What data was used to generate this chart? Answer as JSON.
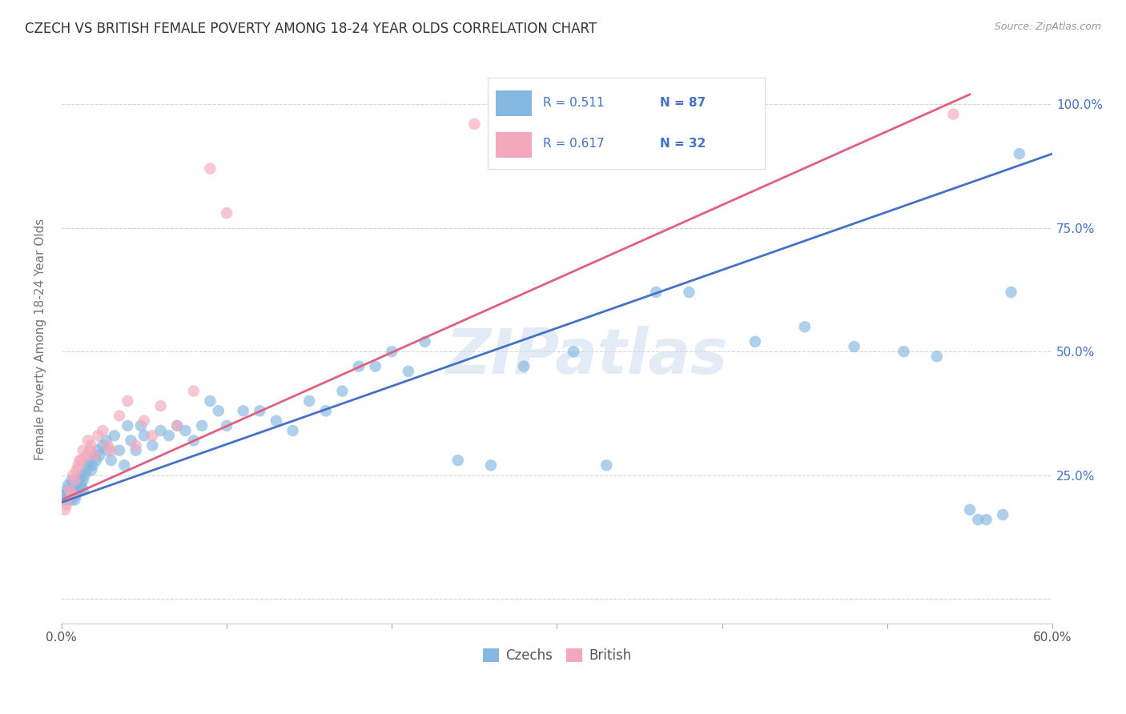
{
  "title": "CZECH VS BRITISH FEMALE POVERTY AMONG 18-24 YEAR OLDS CORRELATION CHART",
  "source": "Source: ZipAtlas.com",
  "ylabel": "Female Poverty Among 18-24 Year Olds",
  "xlim": [
    0.0,
    0.6
  ],
  "ylim": [
    -0.05,
    1.1
  ],
  "xtick_pos": [
    0.0,
    0.1,
    0.2,
    0.3,
    0.4,
    0.5,
    0.6
  ],
  "xtick_labels_bottom": [
    "0.0%",
    "",
    "",
    "",
    "",
    "",
    "60.0%"
  ],
  "ytick_pos": [
    0.0,
    0.25,
    0.5,
    0.75,
    1.0
  ],
  "ytick_labels_right": [
    "",
    "25.0%",
    "50.0%",
    "75.0%",
    "100.0%"
  ],
  "watermark": "ZIPatlas",
  "legend_czechs_label": "Czechs",
  "legend_british_label": "British",
  "legend_r_czechs": "R = 0.511",
  "legend_n_czechs": "N = 87",
  "legend_r_british": "R = 0.617",
  "legend_n_british": "N = 32",
  "czechs_color": "#85b8e0",
  "british_color": "#f4a8bc",
  "czechs_line_color": "#4472c4",
  "british_line_color": "#e06080",
  "text_color": "#4472c4",
  "background_color": "#ffffff",
  "czechs_x": [
    0.001,
    0.002,
    0.003,
    0.003,
    0.004,
    0.004,
    0.005,
    0.005,
    0.006,
    0.006,
    0.006,
    0.007,
    0.007,
    0.008,
    0.008,
    0.009,
    0.009,
    0.01,
    0.01,
    0.011,
    0.011,
    0.012,
    0.012,
    0.013,
    0.013,
    0.014,
    0.015,
    0.016,
    0.017,
    0.018,
    0.019,
    0.02,
    0.021,
    0.022,
    0.023,
    0.025,
    0.027,
    0.028,
    0.03,
    0.032,
    0.035,
    0.038,
    0.04,
    0.042,
    0.045,
    0.048,
    0.05,
    0.055,
    0.06,
    0.065,
    0.07,
    0.075,
    0.08,
    0.085,
    0.09,
    0.095,
    0.1,
    0.11,
    0.12,
    0.13,
    0.14,
    0.15,
    0.16,
    0.17,
    0.18,
    0.19,
    0.2,
    0.21,
    0.22,
    0.24,
    0.26,
    0.28,
    0.31,
    0.33,
    0.36,
    0.38,
    0.42,
    0.45,
    0.48,
    0.51,
    0.53,
    0.55,
    0.555,
    0.56,
    0.57,
    0.575,
    0.58
  ],
  "czechs_y": [
    0.21,
    0.2,
    0.22,
    0.21,
    0.23,
    0.2,
    0.22,
    0.21,
    0.2,
    0.22,
    0.24,
    0.21,
    0.23,
    0.22,
    0.2,
    0.23,
    0.21,
    0.22,
    0.24,
    0.23,
    0.22,
    0.25,
    0.23,
    0.22,
    0.24,
    0.25,
    0.26,
    0.27,
    0.28,
    0.26,
    0.27,
    0.29,
    0.28,
    0.3,
    0.29,
    0.31,
    0.32,
    0.3,
    0.28,
    0.33,
    0.3,
    0.27,
    0.35,
    0.32,
    0.3,
    0.35,
    0.33,
    0.31,
    0.34,
    0.33,
    0.35,
    0.34,
    0.32,
    0.35,
    0.4,
    0.38,
    0.35,
    0.38,
    0.38,
    0.36,
    0.34,
    0.4,
    0.38,
    0.42,
    0.47,
    0.47,
    0.5,
    0.46,
    0.52,
    0.28,
    0.27,
    0.47,
    0.5,
    0.27,
    0.62,
    0.62,
    0.52,
    0.55,
    0.51,
    0.5,
    0.49,
    0.18,
    0.16,
    0.16,
    0.17,
    0.62,
    0.9
  ],
  "british_x": [
    0.002,
    0.003,
    0.005,
    0.006,
    0.007,
    0.008,
    0.009,
    0.01,
    0.011,
    0.012,
    0.013,
    0.015,
    0.016,
    0.017,
    0.018,
    0.02,
    0.022,
    0.025,
    0.028,
    0.03,
    0.035,
    0.04,
    0.045,
    0.05,
    0.055,
    0.06,
    0.07,
    0.08,
    0.09,
    0.1,
    0.25,
    0.54
  ],
  "british_y": [
    0.18,
    0.19,
    0.22,
    0.21,
    0.25,
    0.24,
    0.26,
    0.27,
    0.28,
    0.28,
    0.3,
    0.29,
    0.32,
    0.3,
    0.31,
    0.29,
    0.33,
    0.34,
    0.31,
    0.3,
    0.37,
    0.4,
    0.31,
    0.36,
    0.33,
    0.39,
    0.35,
    0.42,
    0.87,
    0.78,
    0.96,
    0.98
  ],
  "czechs_line_x0": 0.0,
  "czechs_line_y0": 0.195,
  "czechs_line_x1": 0.6,
  "czechs_line_y1": 0.9,
  "british_line_x0": 0.0,
  "british_line_y0": 0.2,
  "british_line_x1": 0.55,
  "british_line_y1": 1.02
}
